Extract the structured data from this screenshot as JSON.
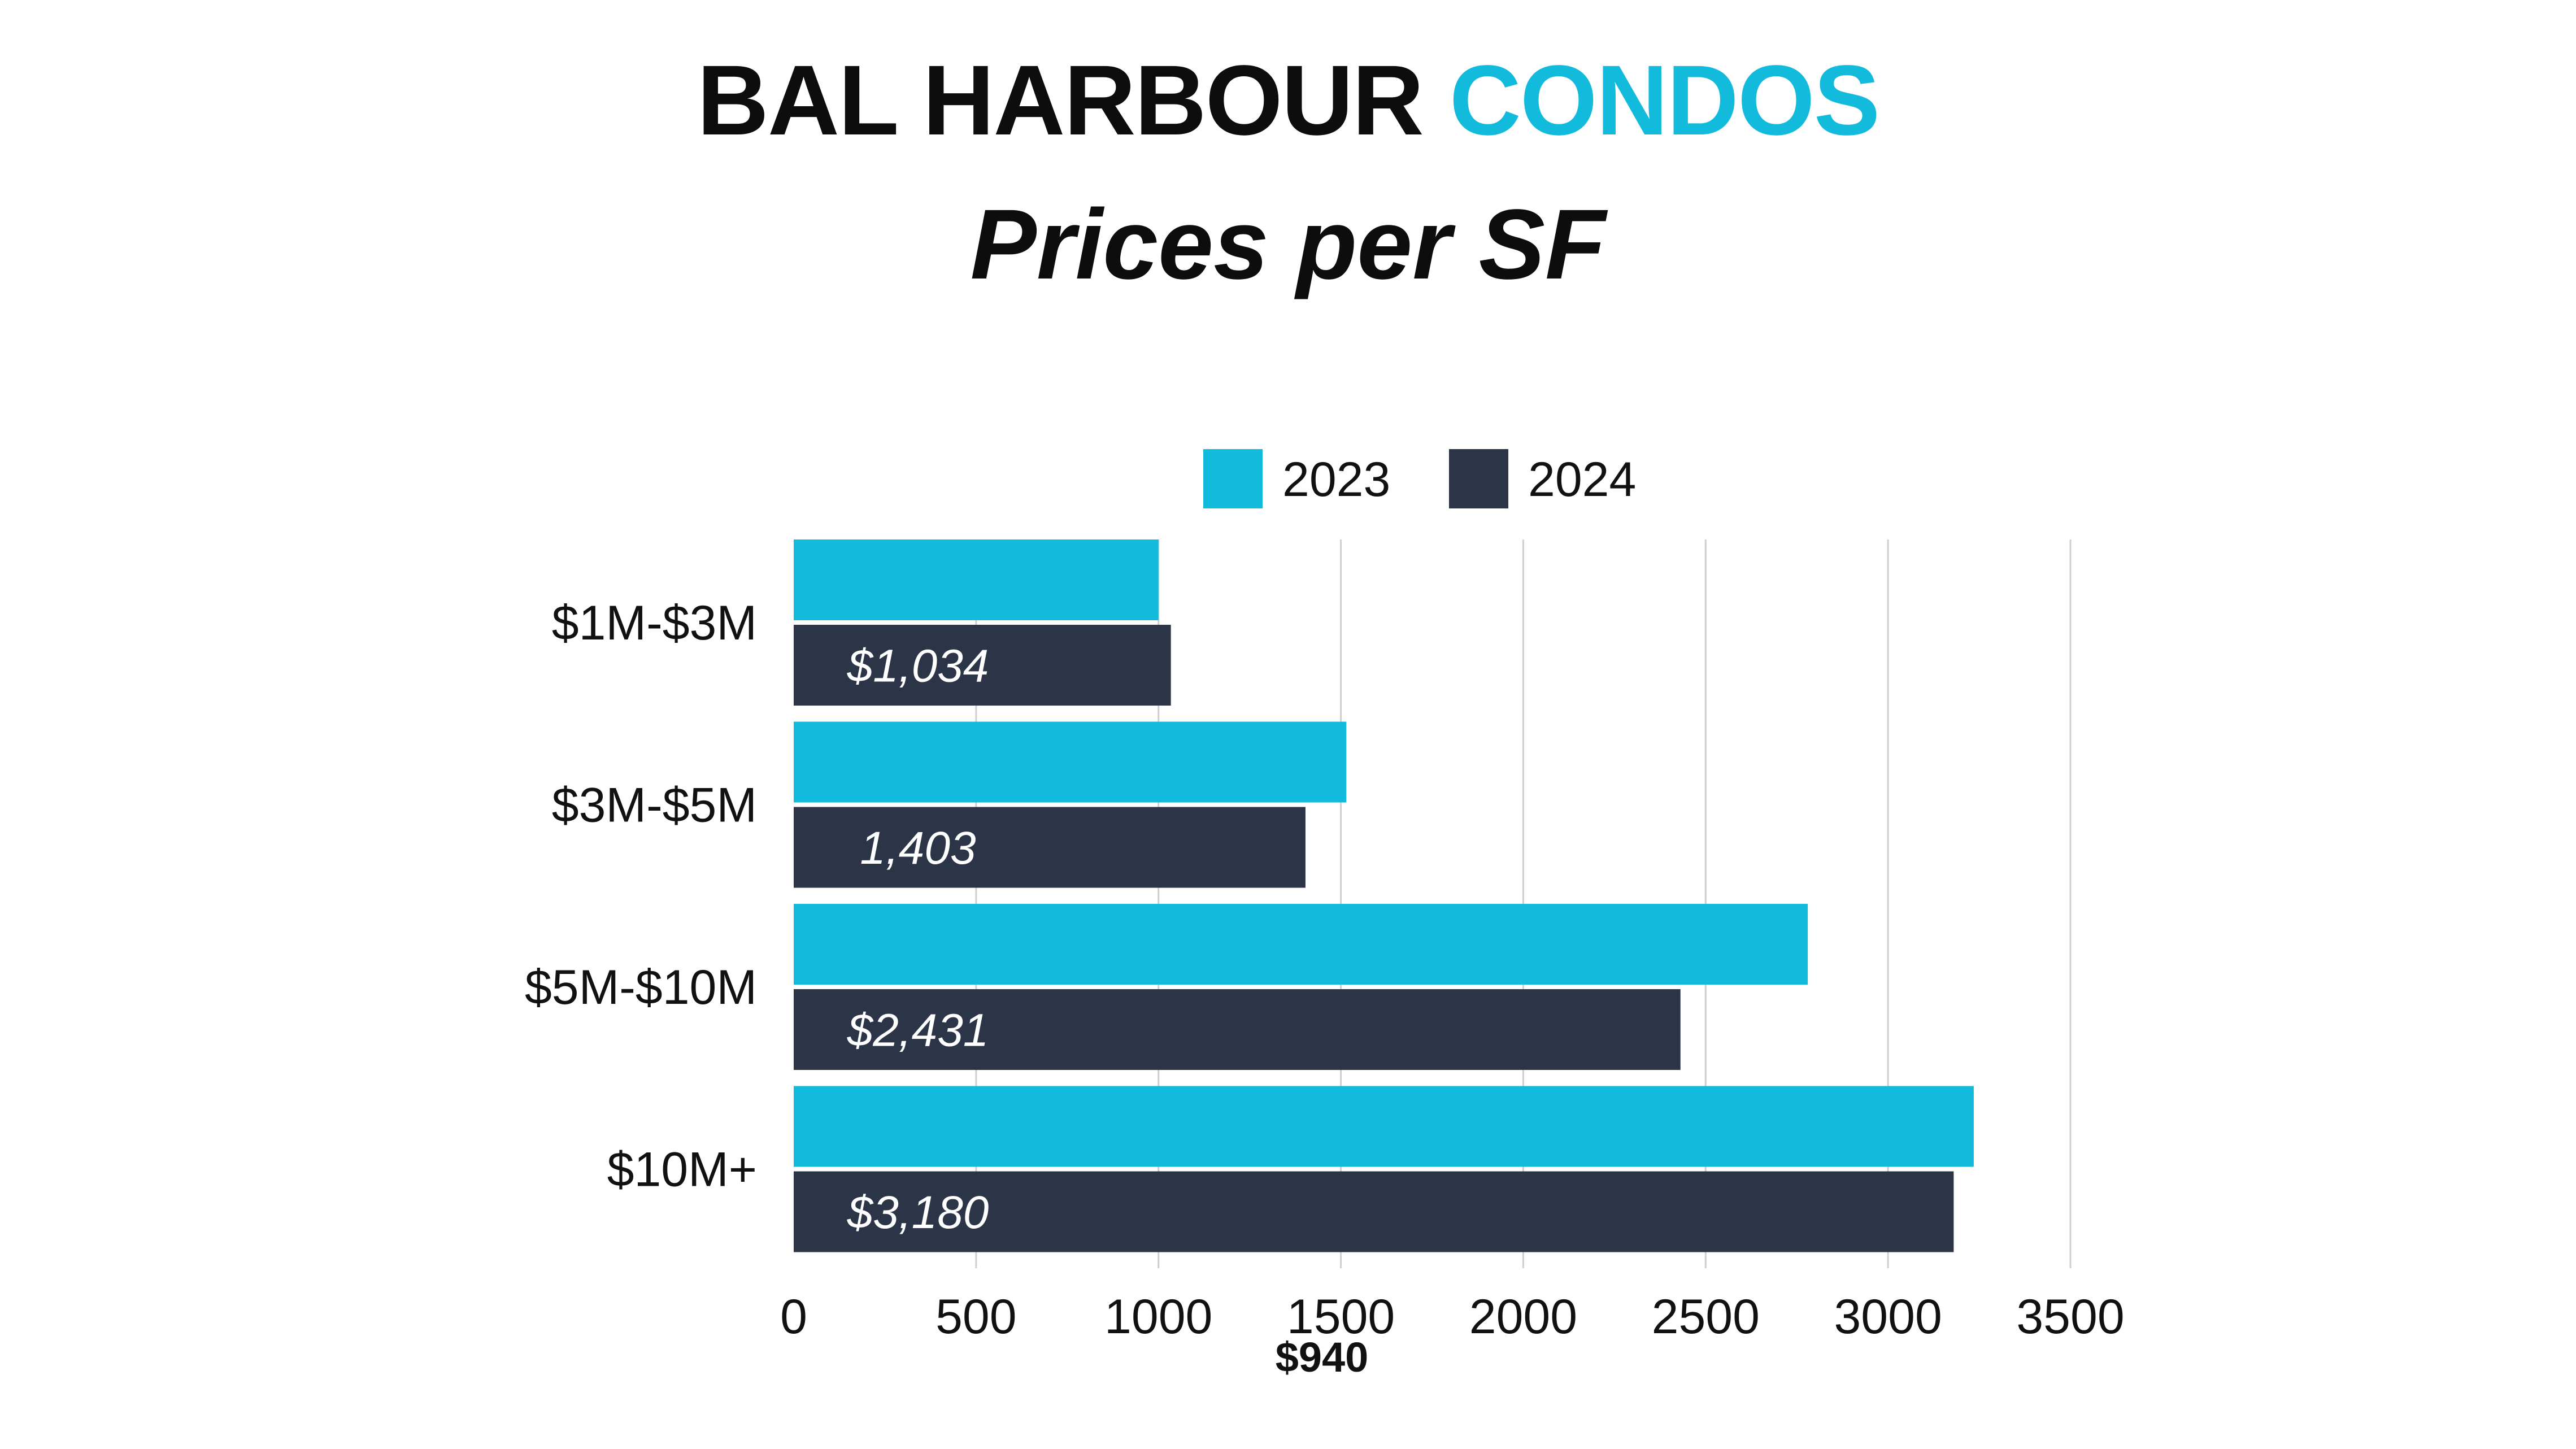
{
  "title": {
    "part1": "BAL HARBOUR",
    "part2": "CONDOS"
  },
  "subtitle": "Prices per SF",
  "colors": {
    "accent": "#12bbdc",
    "dark": "#2c3448",
    "grid": "#cfcfcf",
    "text": "#111111"
  },
  "note": "$940",
  "chart_data": {
    "type": "bar",
    "orientation": "horizontal",
    "categories": [
      "$1M-$3M",
      "$3M-$5M",
      "$5M-$10M",
      "$10M+"
    ],
    "series": [
      {
        "name": "2023",
        "color": "#12bbdc",
        "values": [
          1000,
          1515,
          2780,
          3235
        ]
      },
      {
        "name": "2024",
        "color": "#2c3448",
        "values": [
          1034,
          1403,
          2431,
          3180
        ],
        "data_labels": [
          "$1,034",
          "1,403",
          "$2,431",
          "$3,180"
        ]
      }
    ],
    "xlim": [
      0,
      3500
    ],
    "x_ticks": [
      0,
      500,
      1000,
      1500,
      2000,
      2500,
      3000,
      3500
    ],
    "grid": "vertical",
    "legend_position": "top"
  }
}
